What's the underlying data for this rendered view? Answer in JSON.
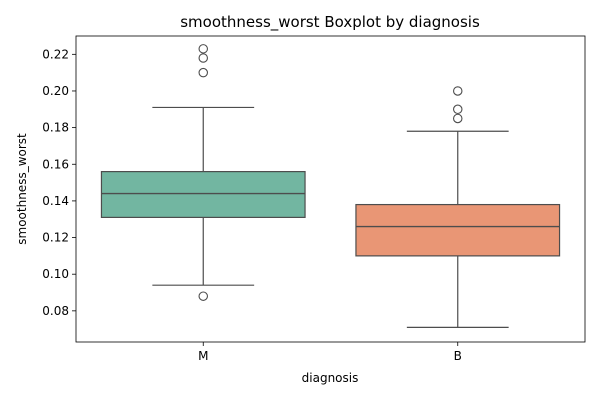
{
  "chart_data": {
    "type": "boxplot",
    "title": "smoothness_worst Boxplot by diagnosis",
    "xlabel": "diagnosis",
    "ylabel": "smoothness_worst",
    "ylim": [
      0.063,
      0.23
    ],
    "yticks": [
      "0.08",
      "0.10",
      "0.12",
      "0.14",
      "0.16",
      "0.18",
      "0.20",
      "0.22"
    ],
    "categories": [
      "M",
      "B"
    ],
    "boxes": [
      {
        "category": "M",
        "color": "#72b6a1",
        "whisker_low": 0.094,
        "q1": 0.131,
        "median": 0.144,
        "q3": 0.156,
        "whisker_high": 0.191,
        "outliers": [
          0.088,
          0.21,
          0.218,
          0.223
        ]
      },
      {
        "category": "B",
        "color": "#e99675",
        "whisker_low": 0.071,
        "q1": 0.11,
        "median": 0.126,
        "q3": 0.138,
        "whisker_high": 0.178,
        "outliers": [
          0.185,
          0.19,
          0.2
        ]
      }
    ],
    "grid": false,
    "legend": "none"
  }
}
